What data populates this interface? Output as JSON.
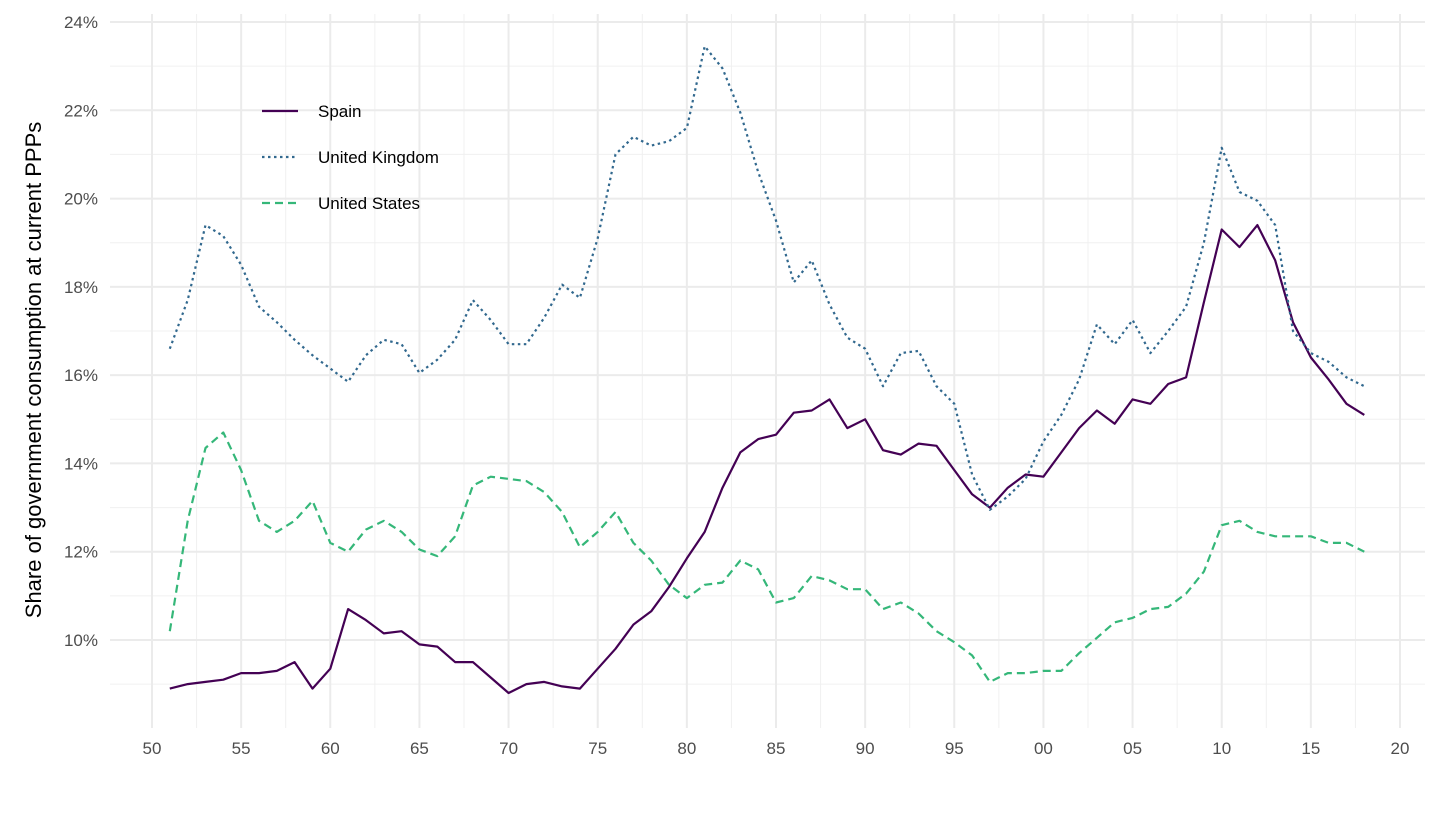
{
  "chart_data": {
    "type": "line",
    "title": "",
    "xlabel": "",
    "ylabel": "Share of government consumption at current PPPs",
    "x": [
      1951,
      1952,
      1953,
      1954,
      1955,
      1956,
      1957,
      1958,
      1959,
      1960,
      1961,
      1962,
      1963,
      1964,
      1965,
      1966,
      1967,
      1968,
      1969,
      1970,
      1971,
      1972,
      1973,
      1974,
      1975,
      1976,
      1977,
      1978,
      1979,
      1980,
      1981,
      1982,
      1983,
      1984,
      1985,
      1986,
      1987,
      1988,
      1989,
      1990,
      1991,
      1992,
      1993,
      1994,
      1995,
      1996,
      1997,
      1998,
      1999,
      2000,
      2001,
      2002,
      2003,
      2004,
      2005,
      2006,
      2007,
      2008,
      2009,
      2010,
      2011,
      2012,
      2013,
      2014,
      2015,
      2016,
      2017,
      2018
    ],
    "xlim": [
      1948.5,
      2021.5
    ],
    "ylim": [
      8.0,
      24.4
    ],
    "x_ticks": [
      1950,
      1955,
      1960,
      1965,
      1970,
      1975,
      1980,
      1985,
      1990,
      1995,
      2000,
      2005,
      2010,
      2015,
      2020
    ],
    "x_tick_labels": [
      "50",
      "55",
      "60",
      "65",
      "70",
      "75",
      "80",
      "85",
      "90",
      "95",
      "00",
      "05",
      "10",
      "15",
      "20"
    ],
    "y_ticks": [
      10,
      12,
      14,
      16,
      18,
      20,
      22,
      24
    ],
    "y_tick_labels": [
      "10%",
      "12%",
      "14%",
      "16%",
      "18%",
      "20%",
      "22%",
      "24%"
    ],
    "grid": true,
    "legend_position": "top-left",
    "series": [
      {
        "name": "Spain",
        "color": "#440154",
        "dash": "solid",
        "values": [
          8.9,
          9.0,
          9.05,
          9.1,
          9.25,
          9.25,
          9.3,
          9.5,
          8.9,
          9.35,
          10.7,
          10.45,
          10.15,
          10.2,
          9.9,
          9.85,
          9.5,
          9.5,
          9.15,
          8.8,
          9.0,
          9.05,
          8.95,
          8.9,
          9.35,
          9.8,
          10.35,
          10.65,
          11.2,
          11.85,
          12.45,
          13.45,
          14.25,
          14.55,
          14.65,
          15.15,
          15.2,
          15.45,
          14.8,
          15.0,
          14.3,
          14.2,
          14.45,
          14.4,
          13.85,
          13.3,
          13.0,
          13.45,
          13.75,
          13.7,
          14.25,
          14.8,
          15.2,
          14.9,
          15.45,
          15.35,
          15.8,
          15.95,
          17.65,
          19.3,
          18.9,
          19.4,
          18.6,
          17.2,
          16.4,
          15.9,
          15.35,
          15.1
        ]
      },
      {
        "name": "United Kingdom",
        "color": "#31688e",
        "dash": "dotted",
        "values": [
          16.6,
          17.7,
          19.4,
          19.15,
          18.5,
          17.55,
          17.2,
          16.8,
          16.45,
          16.15,
          15.85,
          16.45,
          16.8,
          16.7,
          16.05,
          16.35,
          16.8,
          17.7,
          17.25,
          16.7,
          16.7,
          17.3,
          18.05,
          17.75,
          19.1,
          21.0,
          21.4,
          21.2,
          21.3,
          21.6,
          23.45,
          22.95,
          21.95,
          20.6,
          19.5,
          18.1,
          18.6,
          17.6,
          16.85,
          16.6,
          15.75,
          16.5,
          16.55,
          15.75,
          15.35,
          13.75,
          12.95,
          13.25,
          13.65,
          14.5,
          15.1,
          15.9,
          17.15,
          16.7,
          17.25,
          16.5,
          17.0,
          17.55,
          19.0,
          21.15,
          20.15,
          19.95,
          19.4,
          17.0,
          16.5,
          16.3,
          15.95,
          15.75
        ]
      },
      {
        "name": "United States",
        "color": "#35b779",
        "dash": "dashed",
        "values": [
          10.2,
          12.7,
          14.35,
          14.7,
          13.85,
          12.7,
          12.45,
          12.7,
          13.15,
          12.2,
          12.0,
          12.5,
          12.7,
          12.45,
          12.05,
          11.9,
          12.35,
          13.5,
          13.7,
          13.65,
          13.6,
          13.35,
          12.9,
          12.1,
          12.45,
          12.9,
          12.2,
          11.8,
          11.25,
          10.95,
          11.25,
          11.3,
          11.8,
          11.6,
          10.85,
          10.95,
          11.45,
          11.35,
          11.15,
          11.15,
          10.7,
          10.85,
          10.6,
          10.2,
          9.95,
          9.65,
          9.05,
          9.25,
          9.25,
          9.3,
          9.3,
          9.7,
          10.05,
          10.4,
          10.5,
          10.7,
          10.75,
          11.05,
          11.55,
          12.6,
          12.7,
          12.45,
          12.35,
          12.35,
          12.35,
          12.2,
          12.2,
          12.0
        ]
      }
    ]
  }
}
